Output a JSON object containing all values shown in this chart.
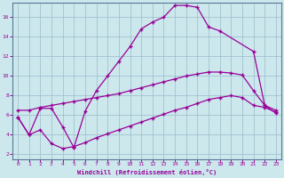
{
  "xlabel": "Windchill (Refroidissement éolien,°C)",
  "bg_color": "#cce8ec",
  "line_color": "#990099",
  "grid_color": "#99bbcc",
  "xlim": [
    -0.5,
    23.5
  ],
  "ylim": [
    1.5,
    17.5
  ],
  "xticks": [
    0,
    1,
    2,
    3,
    4,
    5,
    6,
    7,
    8,
    9,
    10,
    11,
    12,
    13,
    14,
    15,
    16,
    17,
    18,
    19,
    20,
    21,
    22,
    23
  ],
  "yticks": [
    2,
    4,
    6,
    8,
    10,
    12,
    14,
    16
  ],
  "line1_x": [
    0,
    1,
    2,
    3,
    4,
    5,
    6,
    7,
    8,
    9,
    10,
    11,
    12,
    13,
    14,
    15,
    16,
    17,
    18,
    21,
    22,
    23
  ],
  "line1_y": [
    5.8,
    4.0,
    6.7,
    6.7,
    4.8,
    2.7,
    6.4,
    8.5,
    10.0,
    11.5,
    13.0,
    14.8,
    15.5,
    16.0,
    17.2,
    17.2,
    17.0,
    15.0,
    14.6,
    12.5,
    7.0,
    6.2
  ],
  "line2_x": [
    0,
    1,
    2,
    3,
    4,
    5,
    6,
    7,
    8,
    9,
    10,
    11,
    12,
    13,
    14,
    15,
    16,
    17,
    18,
    19,
    20,
    21,
    22,
    23
  ],
  "line2_y": [
    6.5,
    6.5,
    6.8,
    7.0,
    7.2,
    7.4,
    7.6,
    7.8,
    8.0,
    8.2,
    8.5,
    8.8,
    9.1,
    9.4,
    9.7,
    10.0,
    10.2,
    10.4,
    10.4,
    10.3,
    10.1,
    8.5,
    7.0,
    6.5
  ],
  "line3_x": [
    0,
    1,
    2,
    3,
    4,
    5,
    6,
    7,
    8,
    9,
    10,
    11,
    12,
    13,
    14,
    15,
    16,
    17,
    18,
    19,
    20,
    21,
    22,
    23
  ],
  "line3_y": [
    5.8,
    4.0,
    4.5,
    3.1,
    2.6,
    2.8,
    3.2,
    3.7,
    4.1,
    4.5,
    4.9,
    5.3,
    5.7,
    6.1,
    6.5,
    6.8,
    7.2,
    7.6,
    7.8,
    8.0,
    7.8,
    7.0,
    6.8,
    6.3
  ]
}
